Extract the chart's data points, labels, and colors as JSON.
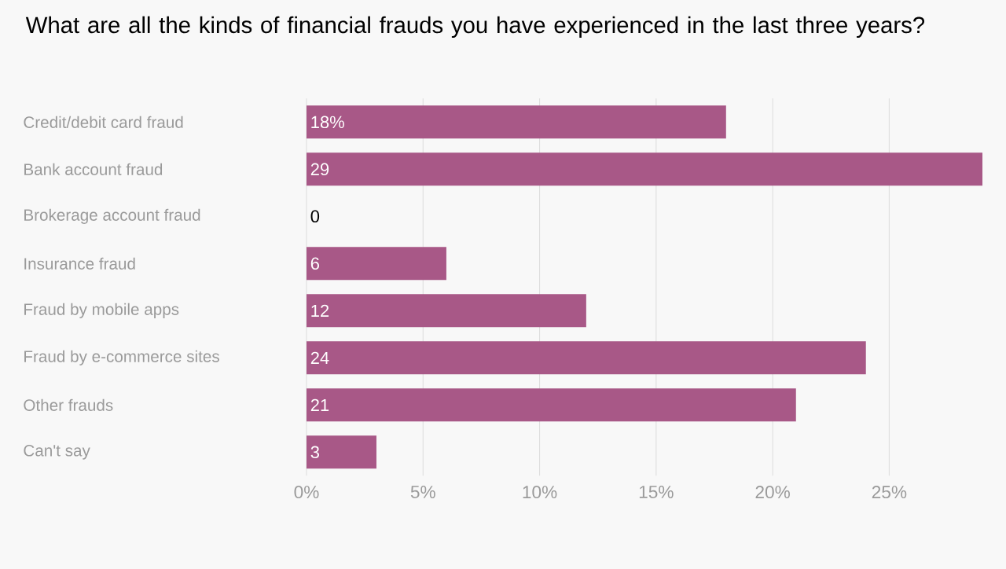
{
  "chart_data": {
    "type": "bar",
    "orientation": "horizontal",
    "title": "What are all the kinds of financial frauds you have experienced in the last three years?",
    "categories": [
      "Credit/debit card fraud",
      "Bank account fraud",
      "Brokerage account fraud",
      "Insurance fraud",
      "Fraud by mobile apps",
      "Fraud by e-commerce sites",
      "Other frauds",
      "Can't say"
    ],
    "values": [
      18,
      29,
      0,
      6,
      12,
      24,
      21,
      3
    ],
    "value_labels": [
      "18%",
      "29",
      "0",
      "6",
      "12",
      "24",
      "21",
      "3"
    ],
    "color": "#a85887",
    "xlim": [
      0,
      29
    ],
    "xticks": [
      {
        "value": 0,
        "label": "0%"
      },
      {
        "value": 5,
        "label": "5%"
      },
      {
        "value": 10,
        "label": "10%"
      },
      {
        "value": 15,
        "label": "15%"
      },
      {
        "value": 20,
        "label": "20%"
      },
      {
        "value": 25,
        "label": "25%"
      }
    ],
    "grid": "x"
  }
}
